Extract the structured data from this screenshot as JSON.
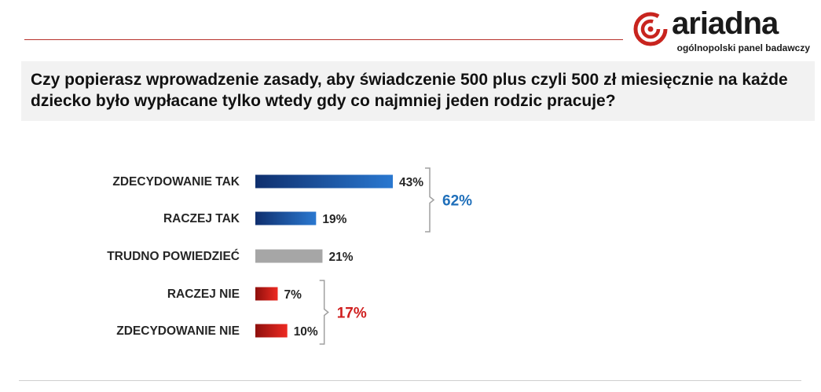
{
  "brand": {
    "name": "ariadna",
    "tagline": "ogólnopolski panel badawczy",
    "accent_color": "#c8241e"
  },
  "question": "Czy popierasz wprowadzenie zasady, aby świadczenie 500 plus czyli 500 zł miesięcznie na każde dziecko było wypłacane tylko wtedy gdy co najmniej jeden rodzic pracuje?",
  "chart_data": {
    "type": "bar",
    "orientation": "horizontal",
    "title": "",
    "xlabel": "",
    "ylabel": "",
    "categories": [
      "ZDECYDOWANIE TAK",
      "RACZEJ TAK",
      "TRUDNO POWIEDZIEĆ",
      "RACZEJ NIE",
      "ZDECYDOWANIE NIE"
    ],
    "values": [
      43,
      19,
      21,
      7,
      10
    ],
    "value_labels": [
      "43%",
      "19%",
      "21%",
      "7%",
      "10%"
    ],
    "bar_colors": [
      "#1f5fb0",
      "#1f5fb0",
      "#a6a6a6",
      "#d9201a",
      "#d9201a"
    ],
    "xlim": [
      0,
      45
    ],
    "grid": false,
    "legend": "none",
    "groups": [
      {
        "label": "62%",
        "members": [
          0,
          1
        ],
        "color": "#1f6fba"
      },
      {
        "label": "17%",
        "members": [
          3,
          4
        ],
        "color": "#d01f1f"
      }
    ]
  }
}
